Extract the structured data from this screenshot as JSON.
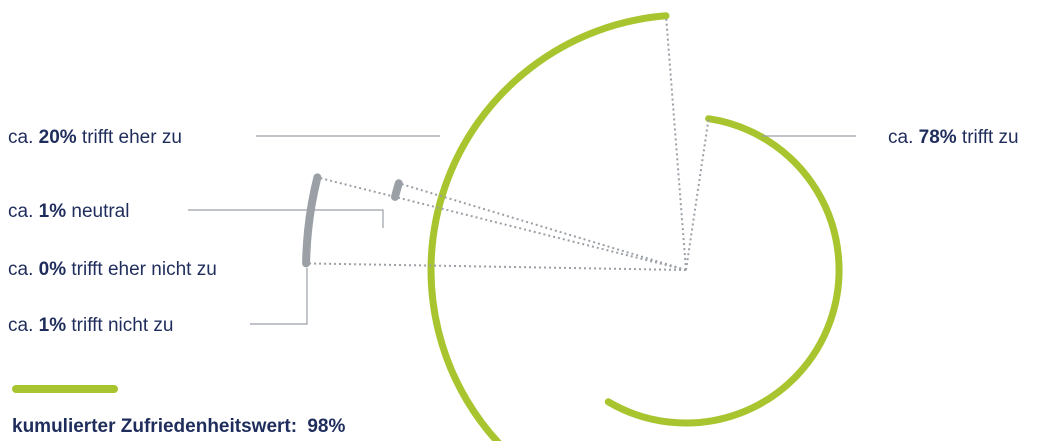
{
  "chart_data": {
    "type": "pie",
    "slices": [
      {
        "label": "trifft zu",
        "prefix": "ca.",
        "value_text": "78%",
        "value": 78,
        "color": "#a8c52f"
      },
      {
        "label": "trifft eher zu",
        "prefix": "ca.",
        "value_text": "20%",
        "value": 20,
        "color": "#a8c52f"
      },
      {
        "label": "neutral",
        "prefix": "ca.",
        "value_text": "1%",
        "value": 1,
        "color": "#9aa0a6"
      },
      {
        "label": "trifft eher nicht zu",
        "prefix": "ca.",
        "value_text": "0%",
        "value": 0,
        "color": "#9aa0a6"
      },
      {
        "label": "trifft nicht zu",
        "prefix": "ca.",
        "value_text": "1%",
        "value": 1,
        "color": "#9aa0a6"
      }
    ],
    "legend": {
      "label": "kumulierter Zufriedenheitswert:",
      "value_text": "98%",
      "color": "#a8c52f"
    }
  }
}
